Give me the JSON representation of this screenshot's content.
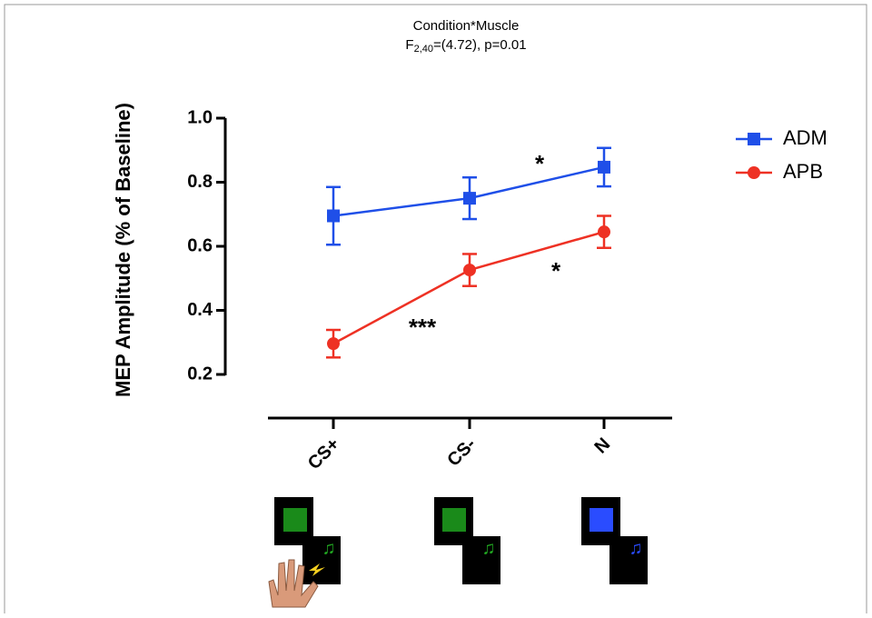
{
  "chart_data": {
    "type": "line",
    "title": "Condition*Muscle",
    "subtitle": {
      "base": "F",
      "subscript": "2,40",
      "rest": "=(4.72), p=0.01"
    },
    "y_label": "MEP Amplitude (% of Baseline)",
    "categories": [
      "CS+",
      "CS-",
      "N"
    ],
    "ylim": [
      0.2,
      1.0
    ],
    "yticks": [
      0.2,
      0.4,
      0.6,
      0.8,
      {
        "value": 1,
        "label": "1.0"
      }
    ],
    "legend": "right",
    "series": [
      {
        "name": "ADM",
        "color": "#1f4fe8",
        "marker": "square",
        "values": [
          0.695,
          0.75,
          0.847
        ],
        "errors": [
          0.09,
          0.065,
          0.06
        ]
      },
      {
        "name": "APB",
        "color": "#ee3124",
        "marker": "circle",
        "values": [
          0.296,
          0.526,
          0.645
        ],
        "errors": [
          0.043,
          0.05,
          0.05
        ]
      }
    ],
    "annotations": [
      "*",
      "*",
      "***"
    ]
  }
}
